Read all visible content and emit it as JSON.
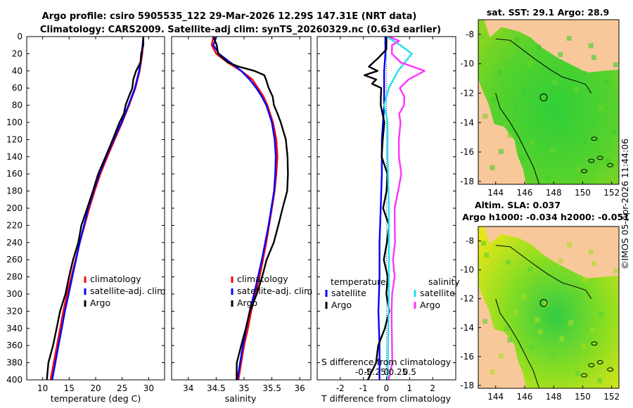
{
  "title_line1": "Argo profile: csiro 5905535_122 29-Mar-2026 12.29S 147.31E (NRT data)",
  "title_line2": "Climatology: CARS2009. Satellite-adj clim: synTS_20260329.nc (0.63d earlier)",
  "watermark": "©IMOS 05-Apr-2026 11:44:06",
  "colors": {
    "climatology": "#ff0000",
    "satellite": "#0000ff",
    "argo": "#000000",
    "sat_s": "#22e0f0",
    "argo_s": "#ff33ff",
    "land": "#f9c89a"
  },
  "chart_data": [
    {
      "type": "line",
      "name": "temperature-panel",
      "xlabel": "temperature (deg C)",
      "ylabel": "",
      "xlim": [
        7,
        33
      ],
      "ylim": [
        400,
        0
      ],
      "xticks": [
        10,
        15,
        20,
        25,
        30
      ],
      "yticks": [
        0,
        20,
        40,
        60,
        80,
        100,
        120,
        140,
        160,
        180,
        200,
        220,
        240,
        260,
        280,
        300,
        320,
        340,
        360,
        380,
        400
      ],
      "legend": [
        "climatology",
        "satellite-adj. clim",
        "Argo"
      ],
      "series": [
        {
          "name": "climatology",
          "depth": [
            0,
            20,
            40,
            60,
            80,
            100,
            120,
            140,
            160,
            180,
            200,
            220,
            240,
            260,
            280,
            300,
            320,
            340,
            360,
            380,
            400
          ],
          "values": [
            29.0,
            28.8,
            28.3,
            27.5,
            26.3,
            25.0,
            23.6,
            22.2,
            20.9,
            19.8,
            18.8,
            17.9,
            17.0,
            16.2,
            15.4,
            14.6,
            13.9,
            13.3,
            12.7,
            12.1,
            11.5
          ]
        },
        {
          "name": "satellite-adj. clim",
          "depth": [
            0,
            20,
            40,
            60,
            80,
            100,
            120,
            140,
            160,
            180,
            200,
            220,
            240,
            260,
            280,
            300,
            320,
            340,
            360,
            380,
            400
          ],
          "values": [
            29.0,
            28.7,
            28.2,
            27.4,
            26.2,
            24.9,
            23.4,
            22.0,
            20.7,
            19.6,
            18.6,
            17.8,
            17.0,
            16.3,
            15.6,
            14.9,
            14.2,
            13.6,
            13.0,
            12.4,
            11.8
          ]
        },
        {
          "name": "Argo",
          "depth": [
            0,
            10,
            20,
            30,
            40,
            50,
            60,
            70,
            80,
            90,
            100,
            120,
            140,
            160,
            180,
            200,
            220,
            240,
            260,
            280,
            300,
            320,
            340,
            360,
            380,
            400
          ],
          "values": [
            29.0,
            28.9,
            28.7,
            28.4,
            27.6,
            27.2,
            26.8,
            26.3,
            25.7,
            25.2,
            24.6,
            23.2,
            21.8,
            20.6,
            19.4,
            18.4,
            17.4,
            16.6,
            15.8,
            15.0,
            14.2,
            13.4,
            12.6,
            11.9,
            11.2,
            10.7
          ]
        }
      ]
    },
    {
      "type": "line",
      "name": "salinity-panel",
      "xlabel": "salinity",
      "ylabel": "",
      "xlim": [
        33.7,
        36.2
      ],
      "ylim": [
        400,
        0
      ],
      "xticks": [
        34,
        34.5,
        35,
        35.5,
        36
      ],
      "legend": [
        "climatology",
        "satellite-adj. clim",
        "Argo"
      ],
      "series": [
        {
          "name": "climatology",
          "depth": [
            0,
            10,
            20,
            30,
            40,
            50,
            60,
            70,
            80,
            100,
            120,
            140,
            160,
            180,
            200,
            220,
            240,
            260,
            280,
            300,
            320,
            340,
            360,
            380,
            400
          ],
          "values": [
            34.45,
            34.42,
            34.5,
            34.7,
            34.95,
            35.15,
            35.25,
            35.35,
            35.42,
            35.52,
            35.58,
            35.6,
            35.58,
            35.55,
            35.5,
            35.45,
            35.4,
            35.34,
            35.28,
            35.2,
            35.13,
            35.07,
            35.0,
            34.95,
            34.9
          ]
        },
        {
          "name": "satellite-adj. clim",
          "depth": [
            0,
            10,
            20,
            30,
            40,
            50,
            60,
            70,
            80,
            100,
            120,
            140,
            160,
            180,
            200,
            220,
            240,
            260,
            280,
            300,
            320,
            340,
            360,
            380,
            400
          ],
          "values": [
            34.5,
            34.45,
            34.55,
            34.75,
            34.95,
            35.1,
            35.22,
            35.32,
            35.4,
            35.5,
            35.55,
            35.57,
            35.56,
            35.54,
            35.49,
            35.44,
            35.38,
            35.32,
            35.25,
            35.18,
            35.1,
            35.04,
            34.98,
            34.93,
            34.88
          ]
        },
        {
          "name": "Argo",
          "depth": [
            0,
            10,
            20,
            30,
            35,
            40,
            45,
            50,
            60,
            70,
            80,
            90,
            100,
            110,
            120,
            140,
            160,
            180,
            200,
            220,
            240,
            260,
            280,
            300,
            320,
            340,
            360,
            380,
            400
          ],
          "values": [
            34.45,
            34.5,
            34.55,
            34.7,
            34.9,
            35.2,
            35.35,
            35.4,
            35.45,
            35.5,
            35.55,
            35.6,
            35.65,
            35.72,
            35.74,
            35.78,
            35.8,
            35.76,
            35.7,
            35.62,
            35.52,
            35.42,
            35.32,
            35.22,
            35.12,
            35.02,
            34.95,
            34.88,
            34.85
          ]
        }
      ]
    },
    {
      "type": "line",
      "name": "difference-panel",
      "xlabel": "T difference from climatology",
      "xlabel_top": "S difference from climatology",
      "xlim": [
        -3,
        3
      ],
      "ylim": [
        400,
        0
      ],
      "xticks": [
        -2,
        -1,
        0,
        1,
        2
      ],
      "xticks_s": [
        "-0.5",
        "-0.25",
        "0",
        "0.25",
        "0.5"
      ],
      "s_positions": [
        -1,
        -0.5,
        0,
        0.5,
        1
      ],
      "legend": {
        "left_title": "temperature",
        "right_title": "salinity",
        "entries": [
          "satellite",
          "Argo",
          "satellite",
          "Argo"
        ]
      },
      "series": [
        {
          "name": "T satellite",
          "depth": [
            0,
            20,
            40,
            60,
            80,
            100,
            120,
            140,
            160,
            200,
            240,
            280,
            320,
            360,
            400
          ],
          "values": [
            -0.05,
            -0.05,
            -0.1,
            -0.1,
            -0.1,
            -0.15,
            -0.2,
            -0.2,
            -0.2,
            -0.25,
            -0.3,
            -0.3,
            -0.35,
            -0.3,
            -0.3
          ]
        },
        {
          "name": "T Argo",
          "depth": [
            0,
            15,
            25,
            35,
            40,
            45,
            50,
            55,
            60,
            70,
            80,
            100,
            120,
            140,
            160,
            180,
            200,
            220,
            240,
            260,
            280,
            300,
            320,
            340,
            360,
            380,
            400
          ],
          "values": [
            0,
            -0.05,
            -0.3,
            -0.8,
            -0.4,
            -0.9,
            -0.5,
            -0.6,
            -0.2,
            -0.3,
            -0.2,
            -0.1,
            -0.2,
            -0.15,
            0.0,
            0.0,
            -0.1,
            0.05,
            0.05,
            -0.1,
            0.0,
            0.05,
            0.1,
            -0.1,
            -0.3,
            -0.5,
            -0.8
          ]
        },
        {
          "name": "S satellite",
          "depth": [
            0,
            10,
            20,
            30,
            40,
            50,
            60,
            80,
            100,
            140,
            200,
            300,
            400
          ],
          "values": [
            0.0,
            0.6,
            1.1,
            0.8,
            0.5,
            0.3,
            0.1,
            -0.1,
            0.05,
            0.05,
            0.1,
            0.1,
            0.05
          ]
        },
        {
          "name": "S Argo",
          "depth": [
            0,
            5,
            10,
            20,
            30,
            40,
            50,
            60,
            70,
            80,
            90,
            100,
            120,
            140,
            160,
            180,
            200,
            220,
            240,
            260,
            280,
            300,
            320,
            340,
            360,
            380,
            400
          ],
          "values": [
            0.1,
            0.5,
            0.3,
            0.2,
            0.6,
            1.7,
            0.9,
            0.6,
            0.8,
            0.7,
            0.6,
            0.6,
            0.5,
            0.6,
            0.6,
            0.5,
            0.4,
            0.3,
            0.4,
            0.3,
            0.3,
            0.3,
            0.2,
            0.2,
            0.3,
            0.2,
            0.1
          ]
        }
      ]
    },
    {
      "type": "heatmap",
      "name": "sst-map",
      "title": "sat. SST: 29.1 Argo: 28.9",
      "xticks": [
        144,
        146,
        148,
        150,
        152
      ],
      "yticks": [
        -8,
        -10,
        -12,
        -14,
        -16,
        -18
      ],
      "xlim": [
        142.8,
        152.5
      ],
      "ylim": [
        -18.2,
        -7
      ]
    },
    {
      "type": "heatmap",
      "name": "sla-map",
      "title_line1": "Altim. SLA: 0.037",
      "title_line2": "Argo h1000: -0.034 h2000: -0.051",
      "xticks": [
        144,
        146,
        148,
        150,
        152
      ],
      "yticks": [
        -8,
        -10,
        -12,
        -14,
        -16,
        -18
      ],
      "xlim": [
        142.8,
        152.5
      ],
      "ylim": [
        -18.2,
        -7
      ]
    }
  ]
}
